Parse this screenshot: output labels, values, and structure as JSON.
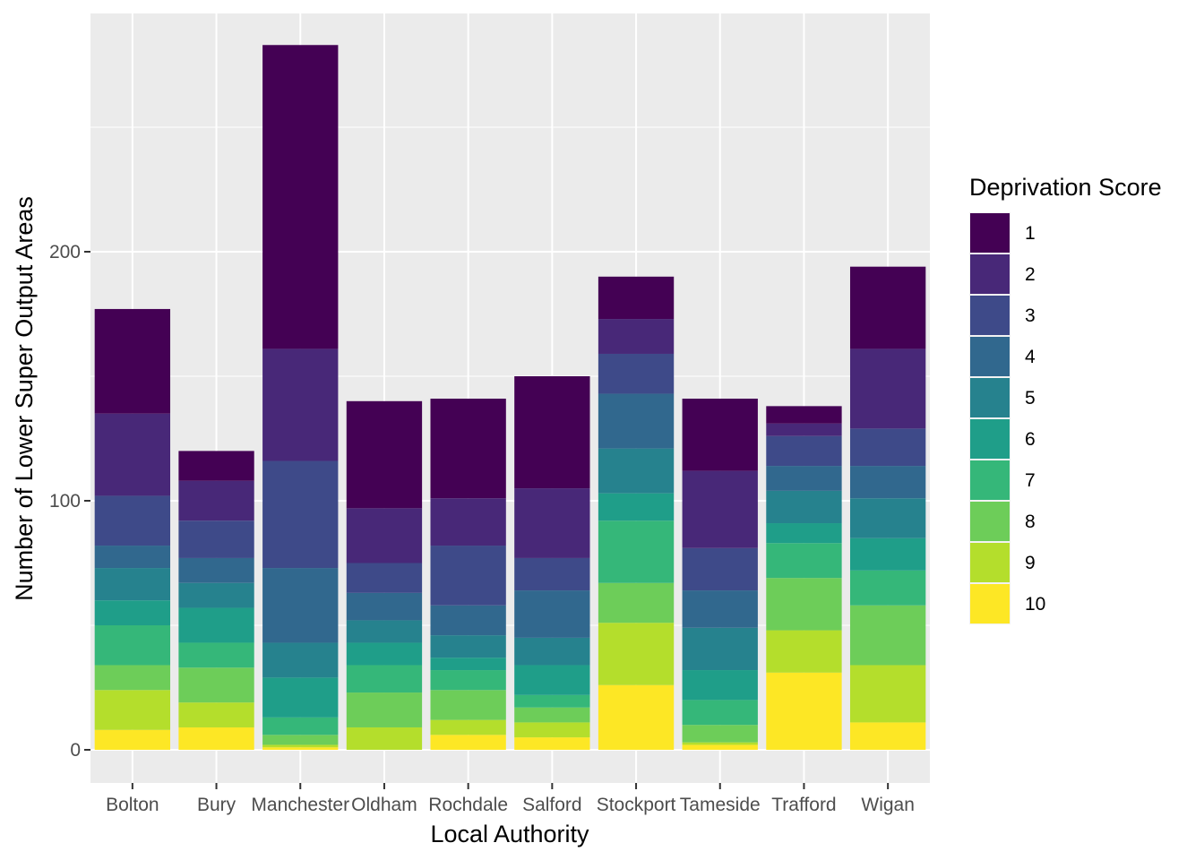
{
  "chart_data": {
    "type": "bar",
    "stacked": true,
    "title": "",
    "xlabel": "Local Authority",
    "ylabel": "Number of Lower Super Output Areas",
    "ylim": [
      -13,
      282
    ],
    "yticks": [
      0,
      100,
      200
    ],
    "grid": true,
    "legend_title": "Deprivation Score",
    "legend_position": "right",
    "categories": [
      "Bolton",
      "Bury",
      "Manchester",
      "Oldham",
      "Rochdale",
      "Salford",
      "Stockport",
      "Tameside",
      "Trafford",
      "Wigan"
    ],
    "series": [
      {
        "name": "1",
        "color": "#440154",
        "values": [
          42,
          12,
          122,
          43,
          40,
          45,
          17,
          29,
          7,
          33
        ]
      },
      {
        "name": "2",
        "color": "#482878",
        "values": [
          33,
          16,
          45,
          22,
          19,
          28,
          14,
          31,
          5,
          32
        ]
      },
      {
        "name": "3",
        "color": "#3E4A89",
        "values": [
          20,
          15,
          43,
          12,
          24,
          13,
          16,
          17,
          12,
          15
        ]
      },
      {
        "name": "4",
        "color": "#31688E",
        "values": [
          9,
          10,
          30,
          11,
          12,
          19,
          22,
          15,
          10,
          13
        ]
      },
      {
        "name": "5",
        "color": "#26828E",
        "values": [
          13,
          10,
          14,
          9,
          9,
          11,
          18,
          17,
          13,
          16
        ]
      },
      {
        "name": "6",
        "color": "#1F9E89",
        "values": [
          10,
          14,
          16,
          9,
          5,
          12,
          11,
          12,
          8,
          13
        ]
      },
      {
        "name": "7",
        "color": "#35B779",
        "values": [
          16,
          10,
          7,
          11,
          8,
          5,
          25,
          10,
          14,
          14
        ]
      },
      {
        "name": "8",
        "color": "#6DCD59",
        "values": [
          10,
          14,
          4,
          14,
          12,
          6,
          16,
          7,
          21,
          24
        ]
      },
      {
        "name": "9",
        "color": "#B4DE2C",
        "values": [
          16,
          10,
          1,
          9,
          6,
          6,
          25,
          1,
          17,
          23
        ]
      },
      {
        "name": "10",
        "color": "#FDE725",
        "values": [
          8,
          9,
          1,
          0,
          6,
          5,
          26,
          2,
          31,
          11
        ]
      }
    ]
  }
}
